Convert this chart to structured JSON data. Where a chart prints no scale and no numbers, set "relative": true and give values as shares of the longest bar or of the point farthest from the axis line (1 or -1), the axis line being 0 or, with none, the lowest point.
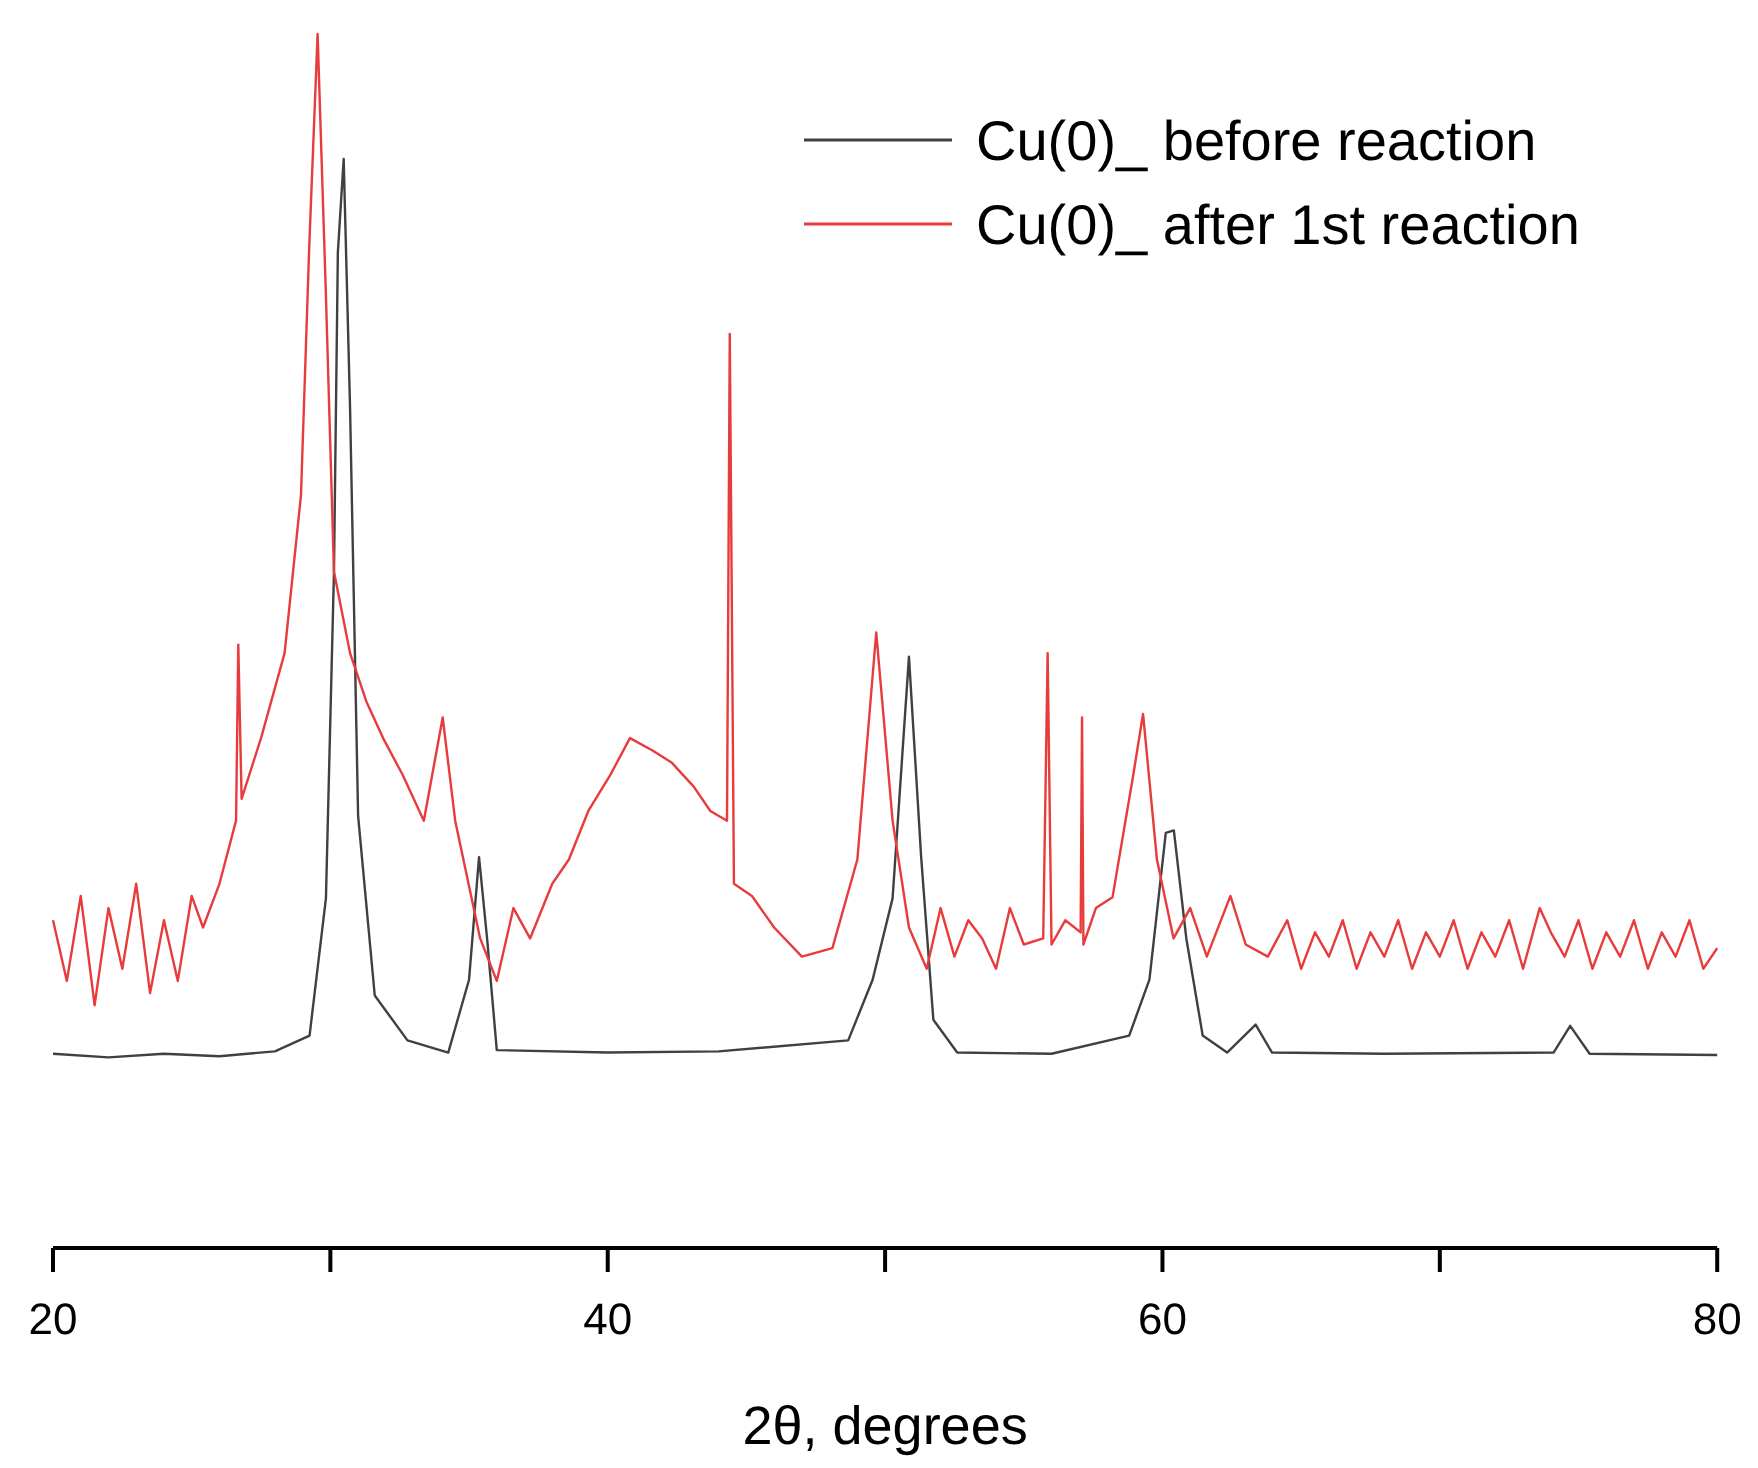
{
  "chart_data": {
    "type": "line",
    "relative": true,
    "xlabel": "2θ, degrees",
    "xlim": [
      20,
      80
    ],
    "xticks": [
      20,
      {
        "value": 30,
        "label": null
      },
      40,
      {
        "value": 50,
        "label": null
      },
      60,
      {
        "value": 70,
        "label": null
      },
      80
    ],
    "legend": "top right",
    "grid": false,
    "series": [
      {
        "name": "Cu(0)_ before reaction",
        "color": "#404040",
        "x": [
          20,
          22,
          24,
          26,
          28,
          29.25,
          29.84,
          30.13,
          30.27,
          30.48,
          30.71,
          31,
          31.6,
          32.78,
          34.25,
          35,
          35.36,
          35.65,
          36,
          40,
          44,
          48.67,
          49.55,
          50.27,
          50.86,
          51.3,
          51.74,
          52.6,
          56,
          58.8,
          59.53,
          60.12,
          60.41,
          60.86,
          61.45,
          62.33,
          63.36,
          63.95,
          68,
          74.1,
          74.7,
          75.4,
          80
        ],
        "values": [
          0.16,
          0.157,
          0.16,
          0.158,
          0.162,
          0.175,
          0.288,
          0.557,
          0.82,
          0.897,
          0.692,
          0.356,
          0.208,
          0.171,
          0.161,
          0.221,
          0.322,
          0.255,
          0.163,
          0.161,
          0.162,
          0.171,
          0.221,
          0.288,
          0.487,
          0.322,
          0.188,
          0.161,
          0.16,
          0.175,
          0.221,
          0.342,
          0.344,
          0.255,
          0.175,
          0.161,
          0.184,
          0.161,
          0.16,
          0.161,
          0.183,
          0.16,
          0.159
        ]
      },
      {
        "name": "Cu(0)_ after 1st reaction",
        "color": "#e83b3b",
        "x": [
          20,
          20.5,
          21,
          21.5,
          22,
          22.5,
          23,
          23.5,
          24,
          24.5,
          25,
          25.41,
          26,
          26.6,
          26.68,
          26.8,
          27.5,
          28.35,
          28.94,
          29.24,
          29.54,
          29.83,
          30.13,
          30.71,
          31.3,
          31.9,
          32.6,
          33.37,
          34.05,
          34.5,
          35.4,
          36,
          36.6,
          37.2,
          38,
          38.6,
          39.3,
          40.1,
          40.8,
          41.6,
          42.3,
          43.1,
          43.7,
          44.3,
          44.4,
          44.55,
          45.2,
          46,
          47,
          48.1,
          49,
          49.68,
          50.27,
          50.86,
          51.5,
          52,
          52.5,
          53,
          53.5,
          54,
          54.5,
          55,
          55.7,
          55.86,
          56,
          56.5,
          57.05,
          57.1,
          57.15,
          57.6,
          58.2,
          58.95,
          59.3,
          59.8,
          60.4,
          61,
          61.6,
          62.45,
          63,
          63.8,
          64.5,
          65,
          65.5,
          66,
          66.5,
          67,
          67.5,
          68,
          68.5,
          69,
          69.5,
          70,
          70.5,
          71,
          71.5,
          72,
          72.5,
          73,
          73.6,
          74,
          74.5,
          75,
          75.5,
          76,
          76.5,
          77,
          77.5,
          78,
          78.5,
          79,
          79.5,
          80
        ],
        "values": [
          0.27,
          0.22,
          0.29,
          0.2,
          0.28,
          0.23,
          0.3,
          0.21,
          0.27,
          0.22,
          0.29,
          0.264,
          0.3,
          0.352,
          0.497,
          0.37,
          0.42,
          0.49,
          0.62,
          0.826,
          1,
          0.792,
          0.557,
          0.49,
          0.45,
          0.42,
          0.39,
          0.352,
          0.437,
          0.352,
          0.255,
          0.22,
          0.28,
          0.255,
          0.3,
          0.32,
          0.36,
          0.39,
          0.42,
          0.41,
          0.4,
          0.38,
          0.36,
          0.352,
          0.753,
          0.3,
          0.29,
          0.264,
          0.24,
          0.247,
          0.32,
          0.507,
          0.352,
          0.264,
          0.23,
          0.28,
          0.24,
          0.27,
          0.255,
          0.23,
          0.28,
          0.25,
          0.255,
          0.49,
          0.25,
          0.27,
          0.26,
          0.437,
          0.25,
          0.28,
          0.289,
          0.39,
          0.44,
          0.32,
          0.255,
          0.28,
          0.24,
          0.29,
          0.25,
          0.24,
          0.27,
          0.23,
          0.26,
          0.24,
          0.27,
          0.23,
          0.26,
          0.24,
          0.27,
          0.23,
          0.26,
          0.24,
          0.27,
          0.23,
          0.26,
          0.24,
          0.27,
          0.23,
          0.28,
          0.26,
          0.24,
          0.27,
          0.23,
          0.26,
          0.24,
          0.27,
          0.23,
          0.26,
          0.24,
          0.27,
          0.23,
          0.247
        ]
      }
    ]
  }
}
